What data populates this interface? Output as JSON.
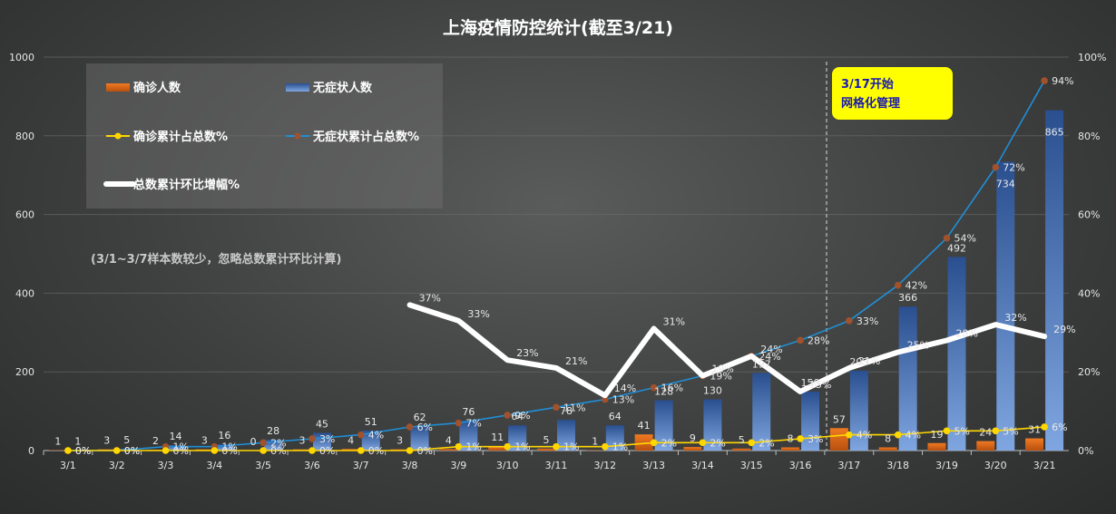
{
  "chart_data": {
    "type": "bar",
    "title": "上海疫情防控统计(截至3/21)",
    "categories": [
      "3/1",
      "3/2",
      "3/3",
      "3/4",
      "3/5",
      "3/6",
      "3/7",
      "3/8",
      "3/9",
      "3/10",
      "3/11",
      "3/12",
      "3/13",
      "3/14",
      "3/15",
      "3/16",
      "3/17",
      "3/18",
      "3/19",
      "3/20",
      "3/21"
    ],
    "y_left": {
      "min": 0,
      "max": 1000,
      "ticks": [
        "0",
        "200",
        "400",
        "600",
        "800",
        "1000"
      ]
    },
    "y_right": {
      "min": 0,
      "max": 100,
      "ticks": [
        "0%",
        "20%",
        "40%",
        "60%",
        "80%",
        "100%"
      ]
    },
    "series": [
      {
        "name": "确诊人数",
        "kind": "bar",
        "axis": "left",
        "color": "#e8701f",
        "values": [
          1,
          3,
          2,
          3,
          0,
          3,
          4,
          3,
          4,
          11,
          5,
          1,
          41,
          9,
          5,
          8,
          57,
          8,
          19,
          24,
          31
        ]
      },
      {
        "name": "无症状人数",
        "kind": "bar",
        "axis": "left",
        "color": "#4472c4",
        "values": [
          1,
          5,
          14,
          16,
          28,
          45,
          51,
          62,
          76,
          64,
          78,
          64,
          128,
          130,
          197,
          150,
          203,
          366,
          492,
          734,
          865
        ],
        "labels": [
          "1",
          "5",
          "14",
          "16",
          "28",
          "45",
          "51",
          "62",
          "76",
          "64",
          "78",
          "64",
          "128",
          "130",
          "197",
          "150",
          "203",
          "366",
          "492",
          "734",
          "865"
        ]
      },
      {
        "name": "确诊累计占总数%",
        "kind": "line",
        "axis": "right",
        "color": "#ffd700",
        "values": [
          0,
          0,
          0,
          0,
          0,
          0,
          0,
          0,
          1,
          1,
          1,
          1,
          2,
          2,
          2,
          3,
          4,
          4,
          5,
          5,
          6
        ],
        "labels": [
          "0%",
          "0%",
          "0%",
          "0%",
          "0%",
          "0%",
          "0%",
          "0%",
          "1%",
          "1%",
          "1%",
          "1%",
          "2%",
          "2%",
          "2%",
          "3%",
          "4%",
          "4%",
          "5%",
          "5%",
          "6%"
        ]
      },
      {
        "name": "无症状累计占总数%",
        "kind": "line",
        "axis": "right",
        "color": "#1f8fd6",
        "values": [
          0,
          0,
          1,
          1,
          2,
          3,
          4,
          6,
          7,
          9,
          11,
          13,
          16,
          19,
          24,
          28,
          33,
          42,
          54,
          72,
          94
        ],
        "labels": [
          "0%",
          "0%",
          "1%",
          "1%",
          "2%",
          "3%",
          "4%",
          "6%",
          "7%",
          "9%",
          "11%",
          "13%",
          "16%",
          "19%",
          "24%",
          "28%",
          "33%",
          "42%",
          "54%",
          "72%",
          "94%"
        ]
      },
      {
        "name": "总数累计环比增幅%",
        "kind": "line",
        "axis": "right",
        "color": "#ffffff",
        "values": [
          null,
          null,
          null,
          null,
          null,
          null,
          null,
          37,
          33,
          23,
          21,
          14,
          31,
          19,
          24,
          15,
          21,
          25,
          28,
          32,
          29
        ],
        "labels": [
          "",
          "",
          "",
          "",
          "",
          "",
          "",
          "37%",
          "33%",
          "23%",
          "21%",
          "14%",
          "31%",
          "19%",
          "24%",
          "15%",
          "21%",
          "25%",
          "28%",
          "32%",
          "29%"
        ]
      }
    ],
    "annotations": {
      "note": "(3/1~3/7样本数较少，忽略总数累计环比计算)",
      "callout_line1": "3/17开始",
      "callout_line2": "网格化管理"
    },
    "legend_position": "top-left",
    "grid": true
  }
}
